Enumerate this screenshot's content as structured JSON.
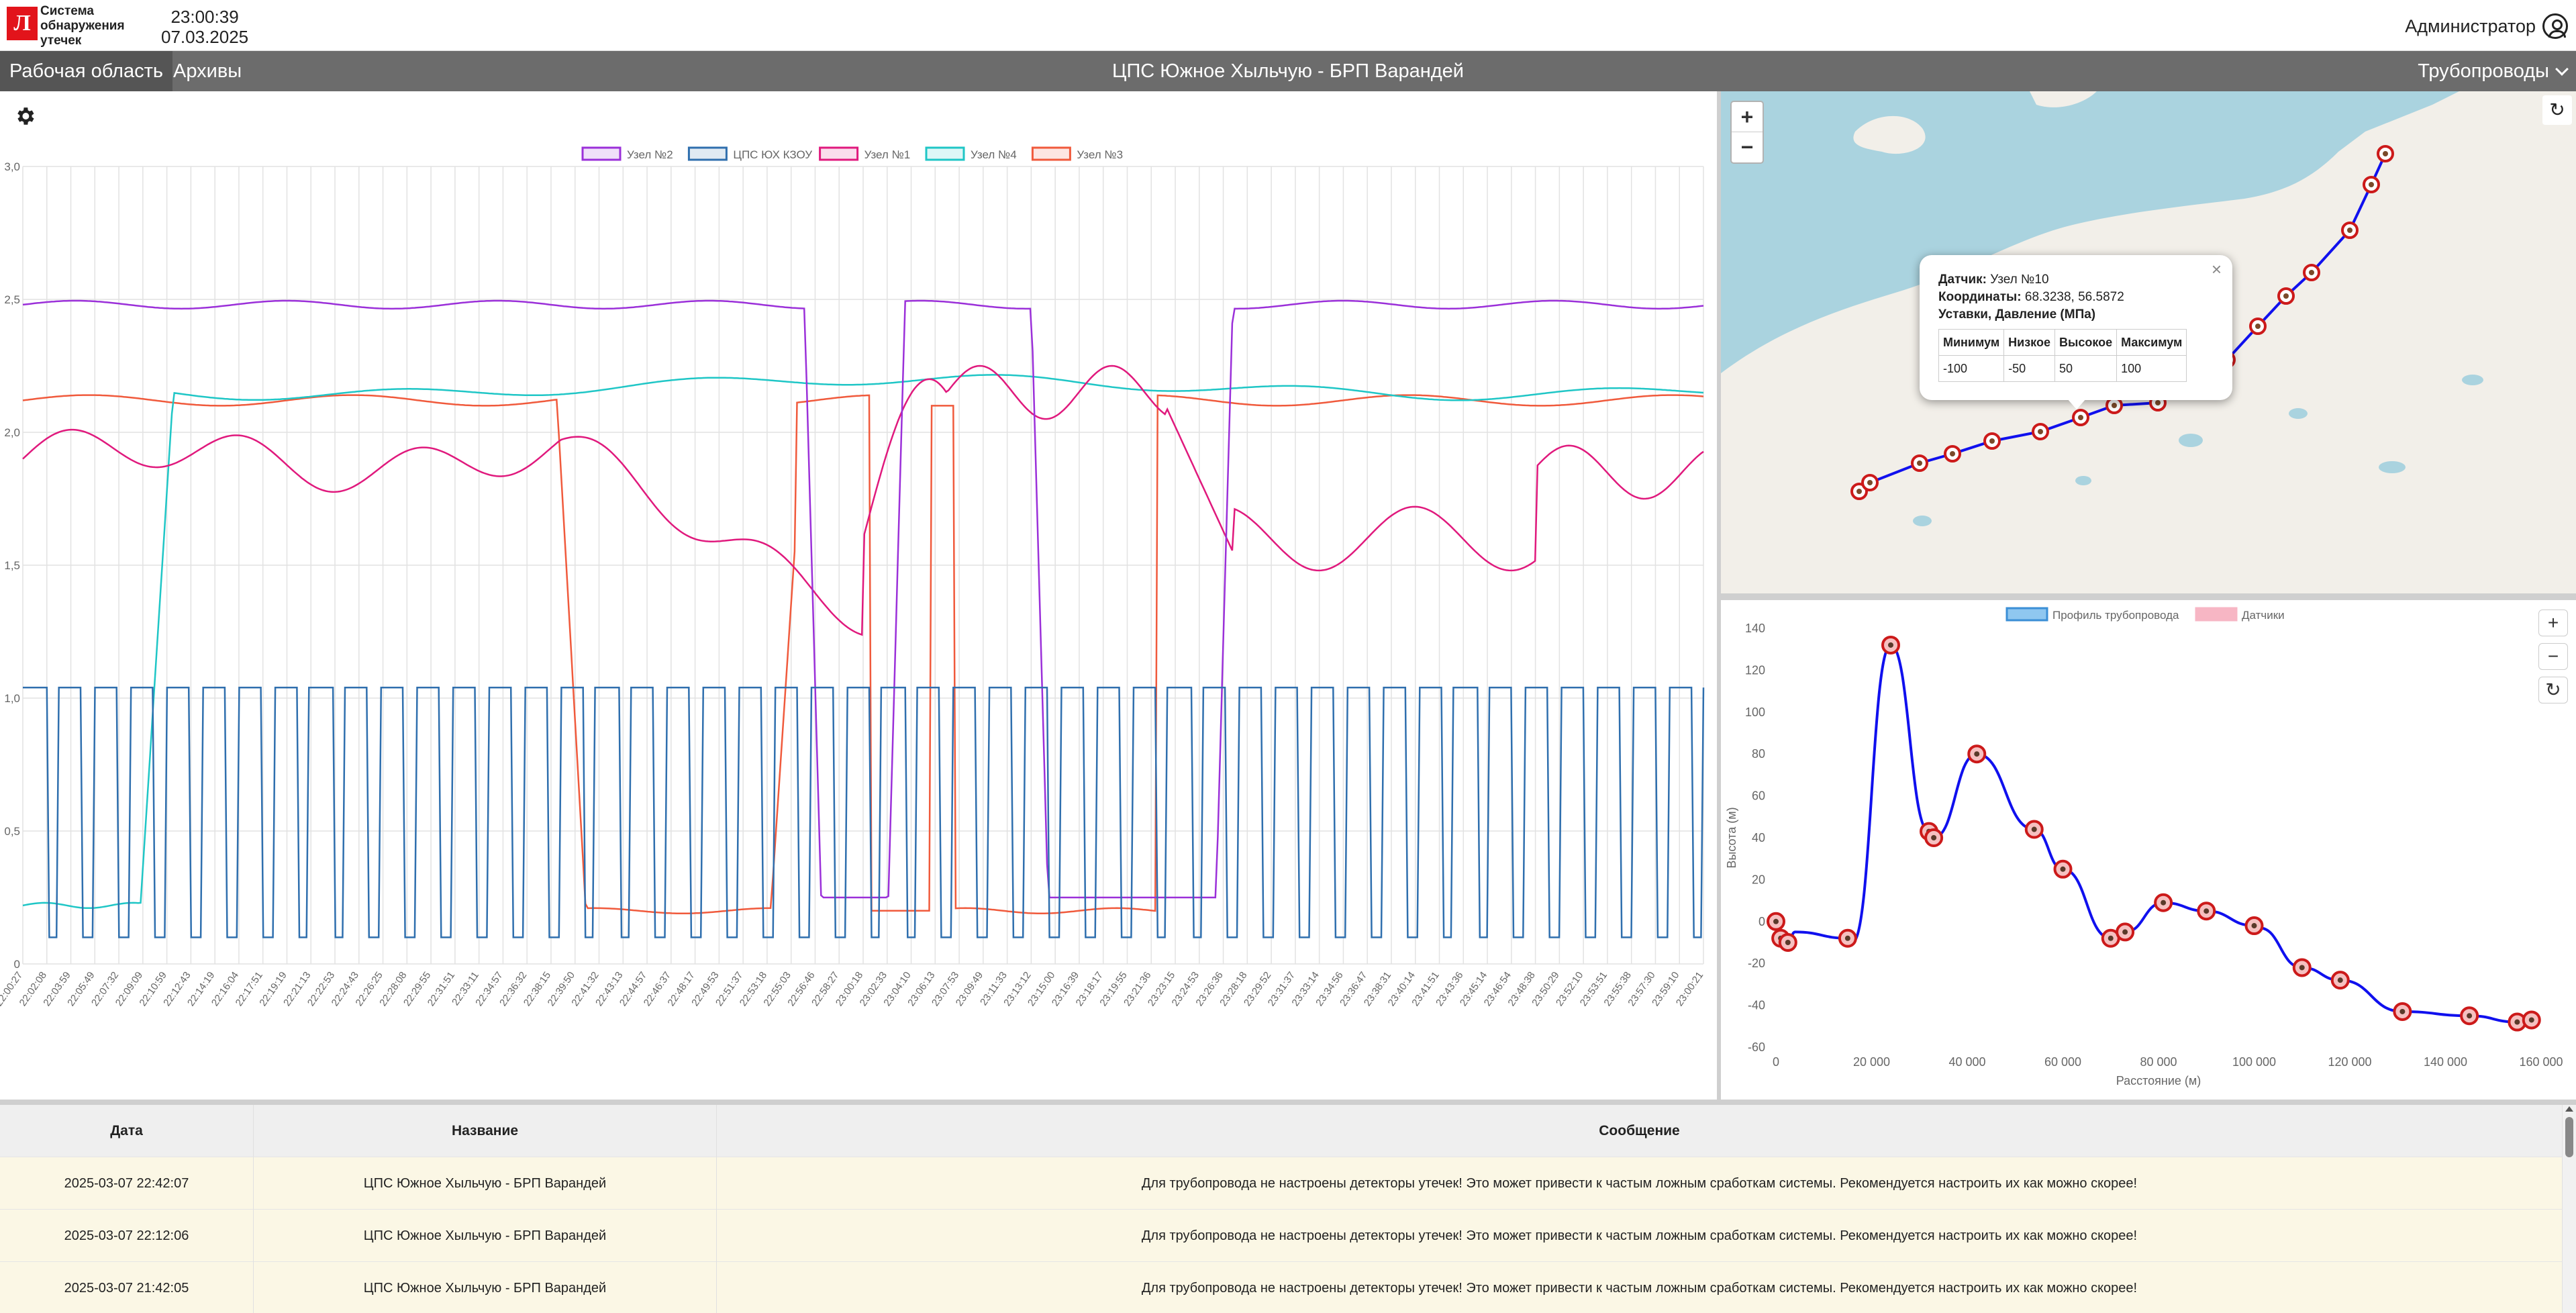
{
  "header": {
    "logo_letter": "Л",
    "app_title_lines": [
      "Система",
      "обнаружения",
      "утечек"
    ],
    "time": "23:00:39",
    "date": "07.03.2025",
    "user": "Администратор"
  },
  "nav": {
    "tabs": [
      {
        "label": "Рабочая область"
      },
      {
        "label": "Архивы"
      }
    ],
    "title": "ЦПС Южное Хыльчую - БРП Варандей",
    "pipelines_dropdown": "Трубопроводы"
  },
  "colors": {
    "uzel2": "#9b30d9",
    "kzou": "#2f6fae",
    "uzel1": "#e0197d",
    "uzel4": "#1fc6c6",
    "uzel3": "#f05a3c",
    "pipe_line": "#1010ee",
    "sensor_marker": "#cc1a1a"
  },
  "chart_data": [
    {
      "type": "line",
      "legend_position": "top",
      "grid": true,
      "ylim": [
        0,
        3.0
      ],
      "y_ticks": [
        "0",
        "0,5",
        "1,0",
        "1,5",
        "2,0",
        "2,5",
        "3,0"
      ],
      "x_labels": [
        "22:00:27",
        "22:02:08",
        "22:03:59",
        "22:05:49",
        "22:07:32",
        "22:09:09",
        "22:10:59",
        "22:12:43",
        "22:14:19",
        "22:16:04",
        "22:17:51",
        "22:19:19",
        "22:21:13",
        "22:22:53",
        "22:24:43",
        "22:26:25",
        "22:28:08",
        "22:29:55",
        "22:31:51",
        "22:33:11",
        "22:34:57",
        "22:36:32",
        "22:38:15",
        "22:39:50",
        "22:41:32",
        "22:43:13",
        "22:44:57",
        "22:46:37",
        "22:48:17",
        "22:49:53",
        "22:51:37",
        "22:53:18",
        "22:55:03",
        "22:56:46",
        "22:58:27",
        "23:00:18",
        "23:02:33",
        "23:04:10",
        "23:06:13",
        "23:07:53",
        "23:09:49",
        "23:11:33",
        "23:13:12",
        "23:15:00",
        "23:16:39",
        "23:18:17",
        "23:19:55",
        "23:21:36",
        "23:23:15",
        "23:24:53",
        "23:26:36",
        "23:28:18",
        "23:29:52",
        "23:31:37",
        "23:33:14",
        "23:34:56",
        "23:36:47",
        "23:38:31",
        "23:40:14",
        "23:41:51",
        "23:43:36",
        "23:45:14",
        "23:46:54",
        "23:48:38",
        "23:50:29",
        "23:52:10",
        "23:53:51",
        "23:55:38",
        "23:57:30",
        "23:59:10",
        "23:00:21"
      ],
      "series": [
        {
          "name": "Узел №2",
          "color": "#9b30d9"
        },
        {
          "name": "ЦПС ЮХ КЗОУ",
          "color": "#2f6fae"
        },
        {
          "name": "Узел №1",
          "color": "#e0197d"
        },
        {
          "name": "Узел №4",
          "color": "#1fc6c6"
        },
        {
          "name": "Узел №3",
          "color": "#f05a3c"
        }
      ]
    },
    {
      "type": "line",
      "legend_position": "top",
      "grid": false,
      "xlabel": "Расстояние (м)",
      "ylabel": "Высота (м)",
      "xlim": [
        0,
        160000
      ],
      "ylim": [
        -60,
        140
      ],
      "x_ticks": [
        "0",
        "20 000",
        "40 000",
        "60 000",
        "80 000",
        "100 000",
        "120 000",
        "140 000",
        "160 000"
      ],
      "y_ticks": [
        "-60",
        "-40",
        "-20",
        "0",
        "20",
        "40",
        "60",
        "80",
        "100",
        "120",
        "140"
      ],
      "series": [
        {
          "name": "Профиль трубопровода",
          "x": [
            0,
            1000,
            2500,
            4000,
            15000,
            16000,
            24000,
            32000,
            33000,
            42000,
            54000,
            60000,
            70000,
            73000,
            81000,
            90000,
            100000,
            101000,
            110000,
            118000,
            131000,
            145000,
            155000,
            158000
          ],
          "y": [
            0,
            -8,
            -10,
            -5,
            -8,
            -10,
            132,
            43,
            40,
            80,
            44,
            25,
            -8,
            -5,
            9,
            5,
            -2,
            -3,
            -22,
            -28,
            -43,
            -45,
            -48,
            -47
          ]
        },
        {
          "name": "Датчики",
          "x": [
            0,
            1000,
            2500,
            15000,
            24000,
            32000,
            33000,
            42000,
            54000,
            60000,
            70000,
            73000,
            81000,
            90000,
            100000,
            110000,
            118000,
            131000,
            145000,
            155000,
            158000
          ],
          "y": [
            0,
            -8,
            -10,
            -8,
            132,
            43,
            40,
            80,
            44,
            25,
            -8,
            -5,
            9,
            5,
            -2,
            -22,
            -28,
            -43,
            -45,
            -48,
            -47
          ]
        }
      ]
    }
  ],
  "map": {
    "zoom_in": "+",
    "zoom_out": "−",
    "refresh": "↻",
    "popup": {
      "close": "×",
      "sensor_label": "Датчик:",
      "sensor_value": "Узел №10",
      "coords_label": "Координаты:",
      "coords_value": "68.3238, 56.5872",
      "setpoints_title": "Уставки, Давление (МПа)",
      "table_headers": [
        "Минимум",
        "Низкое",
        "Высокое",
        "Максимум"
      ],
      "table_values": [
        "-100",
        "-50",
        "50",
        "100"
      ]
    }
  },
  "profile_controls": {
    "zoom_in": "+",
    "zoom_out": "−",
    "reset": "↻"
  },
  "events": {
    "headers": [
      "Дата",
      "Название",
      "Сообщение"
    ],
    "rows": [
      [
        "2025-03-07 22:42:07",
        "ЦПС Южное Хыльчую - БРП Варандей",
        "Для трубопровода не настроены детекторы утечек! Это может привести к частым ложным сработкам системы. Рекомендуется настроить их как можно скорее!"
      ],
      [
        "2025-03-07 22:12:06",
        "ЦПС Южное Хыльчую - БРП Варандей",
        "Для трубопровода не настроены детекторы утечек! Это может привести к частым ложным сработкам системы. Рекомендуется настроить их как можно скорее!"
      ],
      [
        "2025-03-07 21:42:05",
        "ЦПС Южное Хыльчую - БРП Варандей",
        "Для трубопровода не настроены детекторы утечек! Это может привести к частым ложным сработкам системы. Рекомендуется настроить их как можно скорее!"
      ]
    ]
  }
}
